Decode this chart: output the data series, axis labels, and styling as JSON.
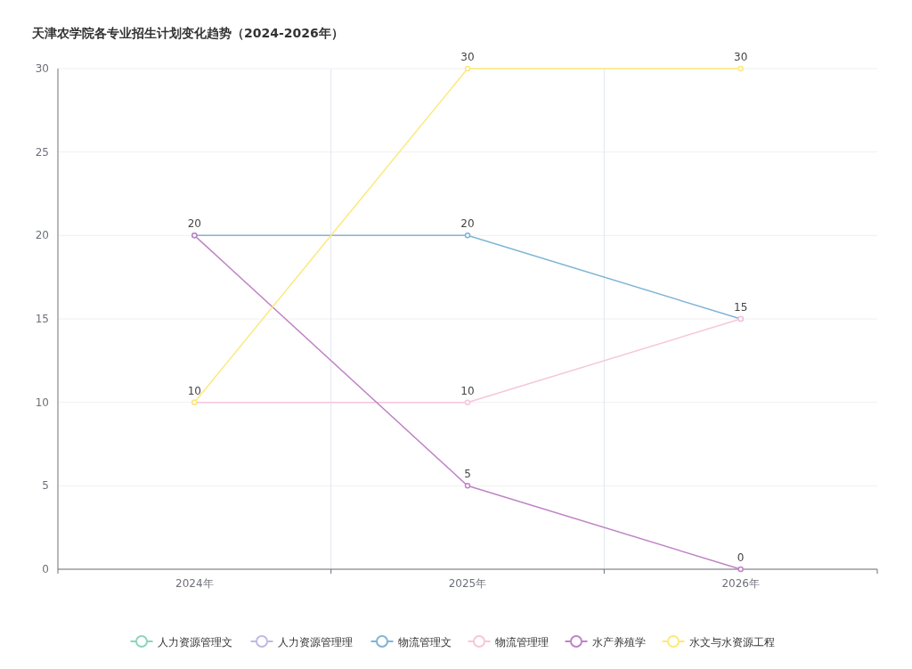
{
  "chart_data": {
    "type": "line",
    "title": "天津农学院各专业招生计划变化趋势（2024-2026年）",
    "categories": [
      "2024年",
      "2025年",
      "2026年"
    ],
    "series": [
      {
        "name": "人力资源管理文",
        "color": "#8dd3c0",
        "values": [
          null,
          null,
          null
        ],
        "value_labels": [
          null,
          null,
          null
        ]
      },
      {
        "name": "人力资源管理理",
        "color": "#c2b8e3",
        "values": [
          null,
          null,
          null
        ],
        "value_labels": [
          null,
          null,
          null
        ]
      },
      {
        "name": "物流管理文",
        "color": "#7fb4d5",
        "values": [
          20,
          20,
          15
        ],
        "value_labels": [
          null,
          "20",
          null
        ]
      },
      {
        "name": "物流管理理",
        "color": "#f6c6dc",
        "values": [
          10,
          10,
          15
        ],
        "value_labels": [
          null,
          "10",
          "15"
        ]
      },
      {
        "name": "水产养殖学",
        "color": "#bf83c6",
        "values": [
          20,
          5,
          0
        ],
        "value_labels": [
          "20",
          "5",
          "0"
        ]
      },
      {
        "name": "水文与水资源工程",
        "color": "#fce97a",
        "values": [
          10,
          30,
          30
        ],
        "value_labels": [
          "10",
          "30",
          "30"
        ]
      }
    ],
    "ylim": [
      0,
      30
    ],
    "yticks": [
      0,
      5,
      10,
      15,
      20,
      25,
      30
    ],
    "grid": true,
    "legend": "bottom",
    "marker": "circle"
  }
}
